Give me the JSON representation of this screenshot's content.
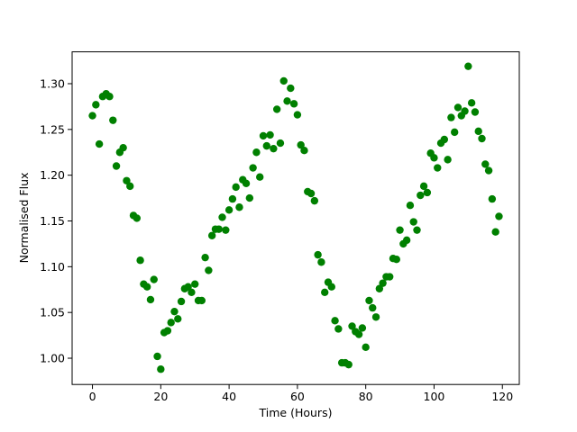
{
  "chart_data": {
    "type": "scatter",
    "xlabel": "Time (Hours)",
    "ylabel": "Normalised Flux",
    "color": "#008000",
    "x": [
      0,
      1,
      2,
      3,
      4,
      5,
      6,
      7,
      8,
      9,
      10,
      11,
      12,
      13,
      14,
      15,
      16,
      17,
      18,
      19,
      20,
      21,
      22,
      23,
      24,
      25,
      26,
      27,
      28,
      29,
      30,
      31,
      32,
      33,
      34,
      35,
      36,
      37,
      38,
      39,
      40,
      41,
      42,
      43,
      44,
      45,
      46,
      47,
      48,
      49,
      50,
      51,
      52,
      53,
      54,
      55,
      56,
      57,
      58,
      59,
      60,
      61,
      62,
      63,
      64,
      65,
      66,
      67,
      68,
      69,
      70,
      71,
      72,
      73,
      74,
      75,
      76,
      77,
      78,
      79,
      80,
      81,
      82,
      83,
      84,
      85,
      86,
      87,
      88,
      89,
      90,
      91,
      92,
      93,
      94,
      95,
      96,
      97,
      98,
      99,
      100,
      101,
      102,
      103,
      104,
      105,
      106,
      107,
      108,
      109,
      110,
      111,
      112,
      113,
      114,
      115,
      116,
      117,
      118,
      119
    ],
    "y": [
      1.265,
      1.277,
      1.234,
      1.286,
      1.289,
      1.286,
      1.26,
      1.21,
      1.225,
      1.23,
      1.194,
      1.188,
      1.156,
      1.153,
      1.107,
      1.081,
      1.078,
      1.064,
      1.086,
      1.002,
      0.988,
      1.028,
      1.03,
      1.039,
      1.051,
      1.043,
      1.062,
      1.076,
      1.078,
      1.072,
      1.081,
      1.063,
      1.063,
      1.11,
      1.096,
      1.134,
      1.141,
      1.141,
      1.154,
      1.14,
      1.162,
      1.174,
      1.187,
      1.165,
      1.195,
      1.191,
      1.175,
      1.208,
      1.225,
      1.198,
      1.243,
      1.232,
      1.244,
      1.229,
      1.272,
      1.235,
      1.303,
      1.281,
      1.295,
      1.278,
      1.266,
      1.233,
      1.227,
      1.182,
      1.18,
      1.172,
      1.113,
      1.105,
      1.072,
      1.083,
      1.078,
      1.041,
      1.032,
      0.995,
      0.995,
      0.993,
      1.035,
      1.029,
      1.026,
      1.033,
      1.012,
      1.063,
      1.055,
      1.045,
      1.076,
      1.082,
      1.089,
      1.089,
      1.109,
      1.108,
      1.14,
      1.125,
      1.129,
      1.167,
      1.149,
      1.14,
      1.178,
      1.188,
      1.181,
      1.224,
      1.219,
      1.208,
      1.235,
      1.239,
      1.217,
      1.263,
      1.247,
      1.274,
      1.265,
      1.27,
      1.319,
      1.279,
      1.269,
      1.248,
      1.24,
      1.212,
      1.205,
      1.174,
      1.138,
      1.155
    ],
    "xlim": [
      -5.95,
      124.95
    ],
    "ylim": [
      0.9713,
      1.3348
    ],
    "xticks": [
      0,
      20,
      40,
      60,
      80,
      100,
      120
    ],
    "yticks": [
      {
        "value": 1.0,
        "label": "1.00"
      },
      {
        "value": 1.05,
        "label": "1.05"
      },
      {
        "value": 1.1,
        "label": "1.10"
      },
      {
        "value": 1.15,
        "label": "1.15"
      },
      {
        "value": 1.2,
        "label": "1.20"
      },
      {
        "value": 1.25,
        "label": "1.25"
      },
      {
        "value": 1.3,
        "label": "1.30"
      }
    ],
    "grid": false
  }
}
